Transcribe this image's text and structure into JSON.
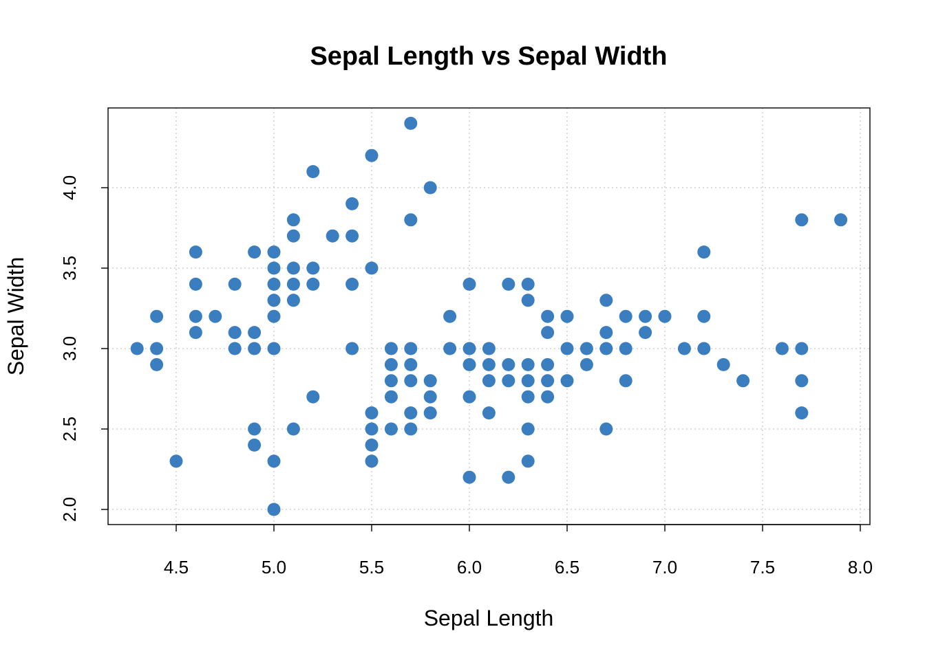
{
  "chart_data": {
    "type": "scatter",
    "title": "Sepal Length vs Sepal Width",
    "xlabel": "Sepal Length",
    "ylabel": "Sepal Width",
    "xlim": [
      4.3,
      7.9
    ],
    "ylim": [
      2.0,
      4.4
    ],
    "x_ticks": [
      "4.5",
      "5.0",
      "5.5",
      "6.0",
      "6.5",
      "7.0",
      "7.5",
      "8.0"
    ],
    "y_ticks": [
      "2.0",
      "2.5",
      "3.0",
      "3.5",
      "4.0"
    ],
    "grid": true,
    "point_color": "#3A7EC0",
    "points": [
      [
        4.3,
        3.0
      ],
      [
        4.4,
        3.2
      ],
      [
        4.4,
        3.0
      ],
      [
        4.4,
        2.9
      ],
      [
        4.5,
        2.3
      ],
      [
        4.6,
        3.6
      ],
      [
        4.6,
        3.4
      ],
      [
        4.6,
        3.2
      ],
      [
        4.6,
        3.1
      ],
      [
        4.7,
        3.2
      ],
      [
        4.8,
        3.4
      ],
      [
        4.8,
        3.1
      ],
      [
        4.8,
        3.0
      ],
      [
        4.9,
        3.6
      ],
      [
        4.9,
        3.1
      ],
      [
        4.9,
        3.0
      ],
      [
        4.9,
        2.5
      ],
      [
        4.9,
        2.4
      ],
      [
        5.0,
        3.6
      ],
      [
        5.0,
        3.5
      ],
      [
        5.0,
        3.4
      ],
      [
        5.0,
        3.3
      ],
      [
        5.0,
        3.2
      ],
      [
        5.0,
        3.0
      ],
      [
        5.0,
        2.3
      ],
      [
        5.0,
        2.0
      ],
      [
        5.1,
        3.8
      ],
      [
        5.1,
        3.7
      ],
      [
        5.1,
        3.5
      ],
      [
        5.1,
        3.4
      ],
      [
        5.1,
        3.3
      ],
      [
        5.1,
        2.5
      ],
      [
        5.2,
        4.1
      ],
      [
        5.2,
        3.5
      ],
      [
        5.2,
        3.4
      ],
      [
        5.2,
        2.7
      ],
      [
        5.3,
        3.7
      ],
      [
        5.4,
        3.9
      ],
      [
        5.4,
        3.7
      ],
      [
        5.4,
        3.4
      ],
      [
        5.4,
        3.0
      ],
      [
        5.5,
        4.2
      ],
      [
        5.5,
        3.5
      ],
      [
        5.5,
        2.6
      ],
      [
        5.5,
        2.5
      ],
      [
        5.5,
        2.4
      ],
      [
        5.5,
        2.3
      ],
      [
        5.6,
        3.0
      ],
      [
        5.6,
        2.9
      ],
      [
        5.6,
        2.8
      ],
      [
        5.6,
        2.7
      ],
      [
        5.6,
        2.5
      ],
      [
        5.7,
        4.4
      ],
      [
        5.7,
        3.8
      ],
      [
        5.7,
        3.0
      ],
      [
        5.7,
        2.9
      ],
      [
        5.7,
        2.8
      ],
      [
        5.7,
        2.6
      ],
      [
        5.7,
        2.5
      ],
      [
        5.8,
        4.0
      ],
      [
        5.8,
        2.8
      ],
      [
        5.8,
        2.7
      ],
      [
        5.8,
        2.6
      ],
      [
        5.9,
        3.2
      ],
      [
        5.9,
        3.0
      ],
      [
        6.0,
        3.4
      ],
      [
        6.0,
        3.0
      ],
      [
        6.0,
        2.9
      ],
      [
        6.0,
        2.7
      ],
      [
        6.0,
        2.2
      ],
      [
        6.1,
        3.0
      ],
      [
        6.1,
        2.9
      ],
      [
        6.1,
        2.8
      ],
      [
        6.1,
        2.6
      ],
      [
        6.2,
        3.4
      ],
      [
        6.2,
        2.9
      ],
      [
        6.2,
        2.8
      ],
      [
        6.2,
        2.2
      ],
      [
        6.3,
        3.4
      ],
      [
        6.3,
        3.3
      ],
      [
        6.3,
        2.9
      ],
      [
        6.3,
        2.8
      ],
      [
        6.3,
        2.7
      ],
      [
        6.3,
        2.5
      ],
      [
        6.3,
        2.3
      ],
      [
        6.4,
        3.2
      ],
      [
        6.4,
        3.1
      ],
      [
        6.4,
        2.9
      ],
      [
        6.4,
        2.8
      ],
      [
        6.4,
        2.7
      ],
      [
        6.5,
        3.2
      ],
      [
        6.5,
        3.0
      ],
      [
        6.5,
        2.8
      ],
      [
        6.6,
        3.0
      ],
      [
        6.6,
        2.9
      ],
      [
        6.7,
        3.3
      ],
      [
        6.7,
        3.1
      ],
      [
        6.7,
        3.0
      ],
      [
        6.7,
        2.5
      ],
      [
        6.8,
        3.2
      ],
      [
        6.8,
        3.0
      ],
      [
        6.8,
        2.8
      ],
      [
        6.9,
        3.2
      ],
      [
        6.9,
        3.1
      ],
      [
        7.0,
        3.2
      ],
      [
        7.1,
        3.0
      ],
      [
        7.2,
        3.6
      ],
      [
        7.2,
        3.2
      ],
      [
        7.2,
        3.0
      ],
      [
        7.3,
        2.9
      ],
      [
        7.4,
        2.8
      ],
      [
        7.6,
        3.0
      ],
      [
        7.7,
        3.8
      ],
      [
        7.7,
        3.0
      ],
      [
        7.7,
        2.8
      ],
      [
        7.7,
        2.6
      ],
      [
        7.9,
        3.8
      ]
    ]
  }
}
